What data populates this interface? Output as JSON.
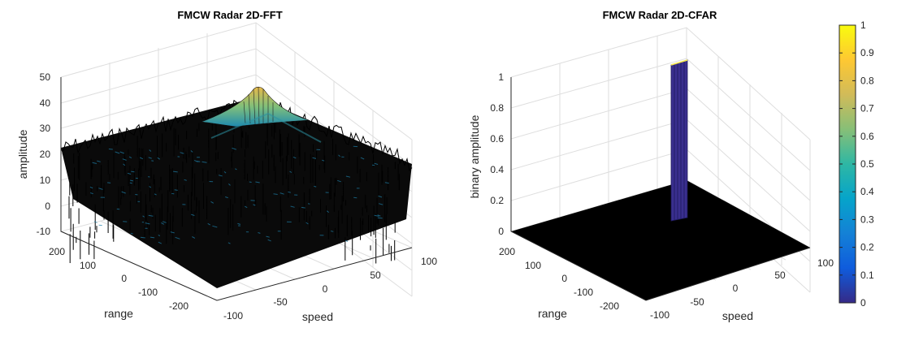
{
  "chart_data": [
    {
      "type": "surface",
      "title": "FMCW Radar 2D-FFT",
      "xlabel": "speed",
      "ylabel": "range",
      "zlabel": "amplitude",
      "xlim": [
        -100,
        100
      ],
      "ylim": [
        -256,
        256
      ],
      "zlim": [
        -10,
        50
      ],
      "x_ticks": [
        "-100",
        "-50",
        "0",
        "50",
        "100"
      ],
      "y_ticks": [
        "200",
        "100",
        "0",
        "-100",
        "-200"
      ],
      "z_ticks": [
        "50",
        "40",
        "30",
        "20",
        "10",
        "0",
        "-10"
      ],
      "grid": true,
      "noise_floor_db": 14,
      "peak": {
        "speed": -20,
        "range": 110,
        "amplitude": 47
      }
    },
    {
      "type": "surface",
      "title": "FMCW Radar 2D-CFAR",
      "xlabel": "speed",
      "ylabel": "range",
      "zlabel": "binary amplitude",
      "xlim": [
        -100,
        100
      ],
      "ylim": [
        -256,
        256
      ],
      "zlim": [
        0,
        1
      ],
      "x_ticks": [
        "-100",
        "-50",
        "0",
        "50",
        "100"
      ],
      "y_ticks": [
        "200",
        "100",
        "0",
        "-100",
        "-200"
      ],
      "z_ticks": [
        "1",
        "0.8",
        "0.6",
        "0.4",
        "0.2",
        "0"
      ],
      "grid": true,
      "detection": {
        "speed": -20,
        "range": 110,
        "value": 1
      }
    }
  ],
  "colorbar": {
    "colormap": "parula",
    "range": [
      0,
      1
    ],
    "ticks": [
      "1",
      "0.9",
      "0.8",
      "0.7",
      "0.6",
      "0.5",
      "0.4",
      "0.3",
      "0.2",
      "0.1",
      "0"
    ],
    "colors": [
      "#352A87",
      "#0F5CDD",
      "#1481D6",
      "#06A4CA",
      "#2EB7A4",
      "#87BF77",
      "#D1BB59",
      "#FEC832",
      "#F9FB0E"
    ]
  }
}
